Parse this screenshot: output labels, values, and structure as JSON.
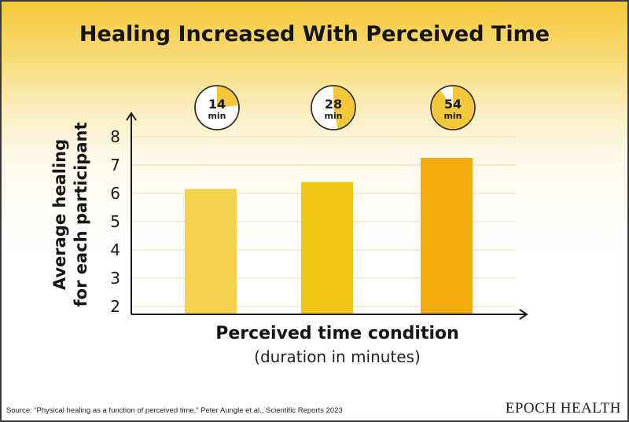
{
  "brand": "EPOCH HEALTH",
  "source": "Source: “Physical healing as a function of perceived time,” Peter Aungle et al., Scientific Reports 2023",
  "timer_unit": "min",
  "colors": {
    "bar_14": "#f4d24e",
    "bar_28": "#f2c414",
    "bar_54": "#f2ac0c",
    "clock_fill": "#f2c73a",
    "axis": "#1a1a1a",
    "grid": "#efe6c6"
  },
  "chart_data": {
    "type": "bar",
    "title": "Healing Increased With Perceived Time",
    "ylabel": "Average healing for each participant",
    "ylabel_lines": [
      "Average healing",
      "for each participant"
    ],
    "xlabel": "Perceived time condition",
    "xlabel_sub": "(duration in minutes)",
    "categories": [
      "14",
      "28",
      "54"
    ],
    "values": [
      6.15,
      6.4,
      7.25
    ],
    "ylim": [
      2,
      8
    ],
    "yticks": [
      2,
      3,
      4,
      5,
      6,
      7,
      8
    ],
    "grid": true
  }
}
